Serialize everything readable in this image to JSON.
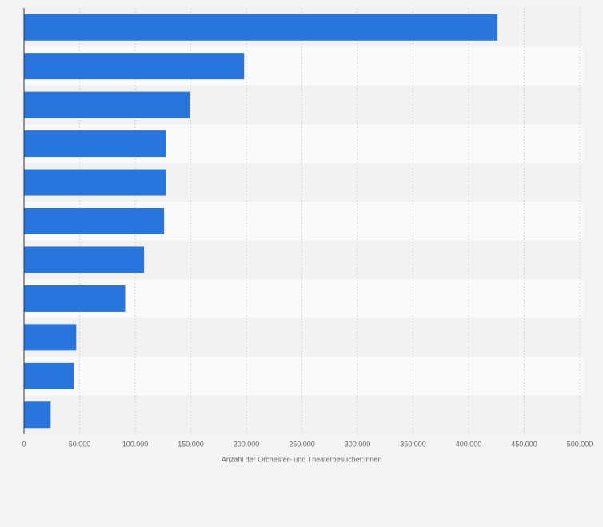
{
  "chart_data": {
    "type": "bar",
    "orientation": "horizontal",
    "x_label": "Anzahl der Orchester- und Theaterbesucher:innen",
    "categories": [
      null,
      null,
      null,
      null,
      null,
      null,
      null,
      null,
      null,
      null,
      null
    ],
    "values": [
      426000,
      198000,
      149000,
      128000,
      128000,
      126000,
      108000,
      91000,
      47000,
      45000,
      24000
    ],
    "color": "#2876dd",
    "xlim": [
      0,
      500000
    ],
    "xticks": [
      0,
      {
        "value": 50000,
        "label": "50.000"
      },
      {
        "value": 100000,
        "label": "100.000"
      },
      {
        "value": 150000,
        "label": "150.000"
      },
      {
        "value": 200000,
        "label": "200.000"
      },
      {
        "value": 250000,
        "label": "250.000"
      },
      {
        "value": 300000,
        "label": "300.000"
      },
      {
        "value": 350000,
        "label": "350.000"
      },
      {
        "value": 400000,
        "label": "400.000"
      },
      {
        "value": 450000,
        "label": "450.000"
      },
      {
        "value": 500000,
        "label": "500.000"
      }
    ],
    "grid": true
  }
}
